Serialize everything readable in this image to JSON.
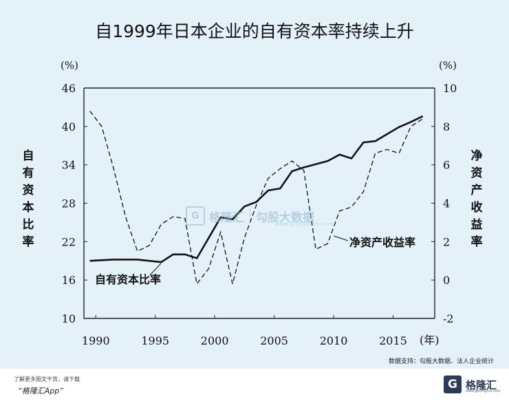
{
  "title": "自1999年日本企业的自有资本率持续上升",
  "source_text": "数据支持：勾股大数据、法人企业统计",
  "footer": {
    "line1": "了解更多图文干货，请下载",
    "line2": "“格隆汇App”",
    "logo_mark": "G",
    "logo_text": "格隆汇",
    "logo_sub": "www.gelonghui.com"
  },
  "watermark": {
    "mark": "G",
    "text1": "格隆汇",
    "text2": "勾股大数据",
    "url": "www.gogudata.com"
  },
  "chart_data": {
    "type": "line",
    "x_label": "(年)",
    "x_ticks": [
      1990,
      1995,
      2000,
      2005,
      2010,
      2015
    ],
    "xlim": [
      1989,
      2018.5
    ],
    "left_axis": {
      "unit": "(%)",
      "label": "自有资本比率",
      "ticks": [
        10,
        16,
        22,
        28,
        34,
        40,
        46
      ],
      "ylim": [
        10,
        46
      ]
    },
    "right_axis": {
      "unit": "(%)",
      "label": "净资产收益率",
      "ticks": [
        -2,
        0,
        2,
        4,
        6,
        8,
        10
      ],
      "ylim": [
        -2,
        10
      ]
    },
    "series": [
      {
        "name": "自有资本比率",
        "axis": "left",
        "style": "solid",
        "x": [
          1989.5,
          1990.5,
          1991.5,
          1992.5,
          1993.5,
          1994.5,
          1995.5,
          1996.5,
          1997.5,
          1998.5,
          1999.5,
          2000.5,
          2001.5,
          2002.5,
          2003.5,
          2004.5,
          2005.5,
          2006.5,
          2007.5,
          2008.5,
          2009.5,
          2010.5,
          2011.5,
          2012.5,
          2013.5,
          2014.5,
          2015.5,
          2016.5,
          2017.5
        ],
        "values": [
          19.0,
          19.1,
          19.2,
          19.2,
          19.2,
          19.0,
          18.8,
          20.0,
          20.0,
          19.4,
          22.6,
          25.8,
          25.5,
          27.5,
          28.2,
          30.0,
          30.3,
          33.0,
          33.6,
          34.1,
          34.6,
          35.6,
          35.0,
          37.5,
          37.7,
          38.8,
          39.9,
          40.7,
          41.6
        ]
      },
      {
        "name": "净资产收益率",
        "axis": "right",
        "style": "dashed",
        "x": [
          1989.5,
          1990.5,
          1991.5,
          1992.5,
          1993.5,
          1994.5,
          1995.5,
          1996.5,
          1997.5,
          1998.5,
          1999.5,
          2000.5,
          2001.5,
          2002.5,
          2003.5,
          2004.5,
          2005.5,
          2006.5,
          2007.5,
          2008.5,
          2009.5,
          2010.5,
          2011.5,
          2012.5,
          2013.5,
          2014.5,
          2015.5,
          2016.5,
          2017.5
        ],
        "values": [
          8.8,
          8.0,
          5.8,
          3.3,
          1.5,
          1.8,
          2.9,
          3.3,
          3.2,
          -0.2,
          0.6,
          2.5,
          -0.2,
          2.2,
          3.9,
          5.3,
          5.8,
          6.2,
          5.7,
          1.6,
          1.9,
          3.6,
          3.8,
          4.6,
          6.6,
          6.8,
          6.6,
          8.0,
          8.4
        ]
      }
    ],
    "annotations": [
      {
        "text": "自有资本比率",
        "series": 0
      },
      {
        "text": "净资产收益率",
        "series": 1
      }
    ]
  }
}
